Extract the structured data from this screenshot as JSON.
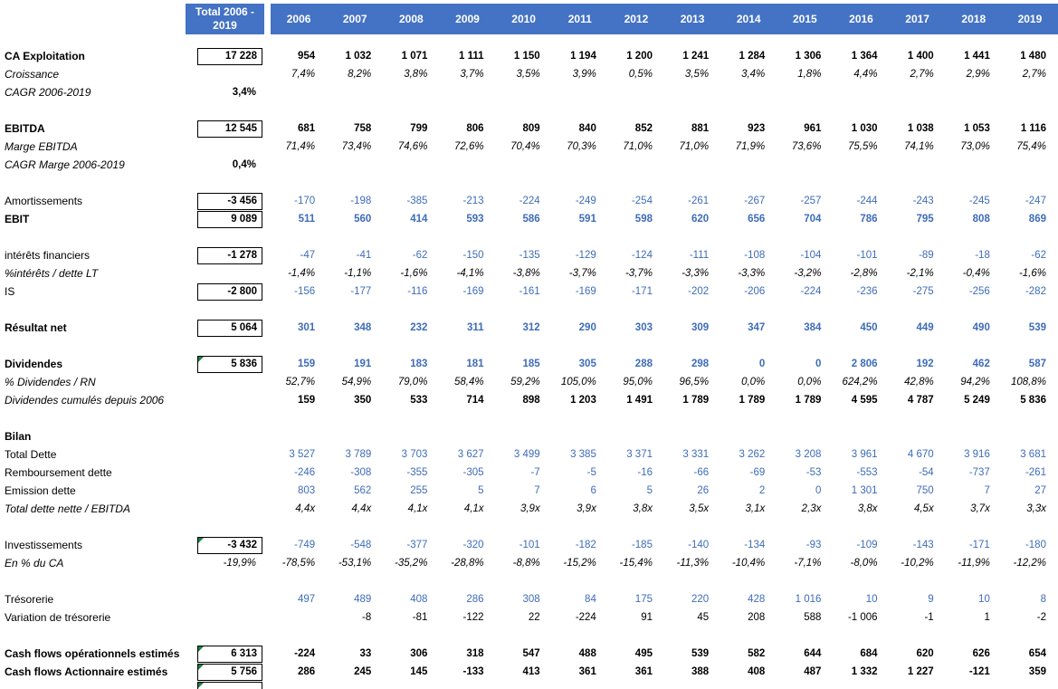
{
  "header": {
    "total_label": "Total 2006 - 2019",
    "years": [
      "2006",
      "2007",
      "2008",
      "2009",
      "2010",
      "2011",
      "2012",
      "2013",
      "2014",
      "2015",
      "2016",
      "2017",
      "2018",
      "2019"
    ]
  },
  "colors": {
    "header_bg": "#4472C4",
    "blue_text": "#3E6CB8",
    "black_text": "#000000",
    "box_border": "#000000",
    "green_flag": "#1F7A44"
  },
  "rows": [
    {
      "key": "ca_exploitation",
      "label": "CA Exploitation",
      "label_style": "bold",
      "total": "17 228",
      "total_boxed": true,
      "green_corner": false,
      "value_class": "b-black",
      "values": [
        "954",
        "1 032",
        "1 071",
        "1 111",
        "1 150",
        "1 194",
        "1 200",
        "1 241",
        "1 284",
        "1 306",
        "1 364",
        "1 400",
        "1 441",
        "1 480"
      ]
    },
    {
      "key": "croissance",
      "label": "Croissance",
      "label_style": "italic",
      "total": null,
      "value_class": "i-black",
      "values": [
        "7,4%",
        "8,2%",
        "3,8%",
        "3,7%",
        "3,5%",
        "3,9%",
        "0,5%",
        "3,5%",
        "3,4%",
        "1,8%",
        "4,4%",
        "2,7%",
        "2,9%",
        "2,7%"
      ]
    },
    {
      "key": "cagr_ca",
      "label": "CAGR 2006-2019",
      "label_style": "italic",
      "total": "3,4%",
      "total_boxed": false,
      "total_style": "boldtot",
      "value_class": "black",
      "values": [
        "",
        "",
        "",
        "",
        "",
        "",
        "",
        "",
        "",
        "",
        "",
        "",
        "",
        ""
      ]
    },
    {
      "type": "spacer"
    },
    {
      "key": "ebitda",
      "label": "EBITDA",
      "label_style": "bold",
      "total": "12 545",
      "total_boxed": true,
      "green_corner": false,
      "value_class": "b-black",
      "values": [
        "681",
        "758",
        "799",
        "806",
        "809",
        "840",
        "852",
        "881",
        "923",
        "961",
        "1 030",
        "1 038",
        "1 053",
        "1 116"
      ]
    },
    {
      "key": "marge_ebitda",
      "label": "Marge EBITDA",
      "label_style": "italic",
      "total": null,
      "value_class": "i-black",
      "values": [
        "71,4%",
        "73,4%",
        "74,6%",
        "72,6%",
        "70,4%",
        "70,3%",
        "71,0%",
        "71,0%",
        "71,9%",
        "73,6%",
        "75,5%",
        "74,1%",
        "73,0%",
        "75,4%"
      ]
    },
    {
      "key": "cagr_marge",
      "label": "CAGR Marge 2006-2019",
      "label_style": "italic",
      "total": "0,4%",
      "total_boxed": false,
      "total_style": "boldtot",
      "value_class": "black",
      "values": [
        "",
        "",
        "",
        "",
        "",
        "",
        "",
        "",
        "",
        "",
        "",
        "",
        "",
        ""
      ]
    },
    {
      "type": "spacer"
    },
    {
      "key": "amortissements",
      "label": "Amortissements",
      "label_style": "normal",
      "total": "-3 456",
      "total_boxed": true,
      "green_corner": false,
      "value_class": "blue",
      "values": [
        "-170",
        "-198",
        "-385",
        "-213",
        "-224",
        "-249",
        "-254",
        "-261",
        "-267",
        "-257",
        "-244",
        "-243",
        "-245",
        "-247"
      ]
    },
    {
      "key": "ebit",
      "label": "EBIT",
      "label_style": "bold",
      "total": "9 089",
      "total_boxed": true,
      "green_corner": false,
      "value_class": "b-blue",
      "values": [
        "511",
        "560",
        "414",
        "593",
        "586",
        "591",
        "598",
        "620",
        "656",
        "704",
        "786",
        "795",
        "808",
        "869"
      ]
    },
    {
      "type": "spacer"
    },
    {
      "key": "interets_financiers",
      "label": "intérêts financiers",
      "label_style": "normal",
      "total": "-1 278",
      "total_boxed": true,
      "green_corner": false,
      "value_class": "blue",
      "values": [
        "-47",
        "-41",
        "-62",
        "-150",
        "-135",
        "-129",
        "-124",
        "-111",
        "-108",
        "-104",
        "-101",
        "-89",
        "-18",
        "-62"
      ]
    },
    {
      "key": "pct_interets_dette",
      "label": "%intérêts / dette LT",
      "label_style": "italic",
      "total": null,
      "value_class": "i-black",
      "values": [
        "-1,4%",
        "-1,1%",
        "-1,6%",
        "-4,1%",
        "-3,8%",
        "-3,7%",
        "-3,7%",
        "-3,3%",
        "-3,3%",
        "-3,2%",
        "-2,8%",
        "-2,1%",
        "-0,4%",
        "-1,6%"
      ]
    },
    {
      "key": "is",
      "label": "IS",
      "label_style": "normal",
      "total": "-2 800",
      "total_boxed": true,
      "green_corner": false,
      "value_class": "blue",
      "values": [
        "-156",
        "-177",
        "-116",
        "-169",
        "-161",
        "-169",
        "-171",
        "-202",
        "-206",
        "-224",
        "-236",
        "-275",
        "-256",
        "-282"
      ]
    },
    {
      "type": "spacer"
    },
    {
      "key": "resultat_net",
      "label": "Résultat net",
      "label_style": "bold",
      "total": "5 064",
      "total_boxed": true,
      "green_corner": false,
      "value_class": "b-blue",
      "values": [
        "301",
        "348",
        "232",
        "311",
        "312",
        "290",
        "303",
        "309",
        "347",
        "384",
        "450",
        "449",
        "490",
        "539"
      ]
    },
    {
      "type": "spacer"
    },
    {
      "key": "dividendes",
      "label": "Dividendes",
      "label_style": "bold",
      "total": "5 836",
      "total_boxed": true,
      "green_corner": true,
      "value_class": "b-blue",
      "values": [
        "159",
        "191",
        "183",
        "181",
        "185",
        "305",
        "288",
        "298",
        "0",
        "0",
        "2 806",
        "192",
        "462",
        "587"
      ]
    },
    {
      "key": "pct_dividendes_rn",
      "label": "% Dividendes / RN",
      "label_style": "italic",
      "total": null,
      "value_class": "i-black",
      "values": [
        "52,7%",
        "54,9%",
        "79,0%",
        "58,4%",
        "59,2%",
        "105,0%",
        "95,0%",
        "96,5%",
        "0,0%",
        "0,0%",
        "624,2%",
        "42,8%",
        "94,2%",
        "108,8%"
      ]
    },
    {
      "key": "dividendes_cumules",
      "label": "Dividendes cumulés depuis 2006",
      "label_style": "italic",
      "total": null,
      "value_class": "b-black",
      "values": [
        "159",
        "350",
        "533",
        "714",
        "898",
        "1 203",
        "1 491",
        "1 789",
        "1 789",
        "1 789",
        "4 595",
        "4 787",
        "5 249",
        "5 836"
      ]
    },
    {
      "type": "spacer"
    },
    {
      "key": "bilan",
      "label": "Bilan",
      "label_style": "bold",
      "total": null,
      "value_class": "black",
      "values": [
        "",
        "",
        "",
        "",
        "",
        "",
        "",
        "",
        "",
        "",
        "",
        "",
        "",
        ""
      ]
    },
    {
      "key": "total_dette",
      "label": "Total Dette",
      "label_style": "normal",
      "total": null,
      "value_class": "blue",
      "values": [
        "3 527",
        "3 789",
        "3 703",
        "3 627",
        "3 499",
        "3 385",
        "3 371",
        "3 331",
        "3 262",
        "3 208",
        "3 961",
        "4 670",
        "3 916",
        "3 681"
      ]
    },
    {
      "key": "remboursement_dette",
      "label": "Remboursement dette",
      "label_style": "normal",
      "total": null,
      "value_class": "blue",
      "values": [
        "-246",
        "-308",
        "-355",
        "-305",
        "-7",
        "-5",
        "-16",
        "-66",
        "-69",
        "-53",
        "-553",
        "-54",
        "-737",
        "-261"
      ]
    },
    {
      "key": "emission_dette",
      "label": "Emission dette",
      "label_style": "normal",
      "total": null,
      "value_class": "blue",
      "values": [
        "803",
        "562",
        "255",
        "5",
        "7",
        "6",
        "5",
        "26",
        "2",
        "0",
        "1 301",
        "750",
        "7",
        "27"
      ]
    },
    {
      "key": "dette_nette_ebitda",
      "label": "Total dette nette / EBITDA",
      "label_style": "italic",
      "total": null,
      "value_class": "i-black",
      "values": [
        "4,4x",
        "4,4x",
        "4,1x",
        "4,1x",
        "3,9x",
        "3,9x",
        "3,8x",
        "3,5x",
        "3,1x",
        "2,3x",
        "3,8x",
        "4,5x",
        "3,7x",
        "3,3x"
      ]
    },
    {
      "type": "spacer"
    },
    {
      "key": "investissements",
      "label": "Investissements",
      "label_style": "normal",
      "total": "-3 432",
      "total_boxed": true,
      "green_corner": true,
      "value_class": "blue",
      "values": [
        "-749",
        "-548",
        "-377",
        "-320",
        "-101",
        "-182",
        "-185",
        "-140",
        "-134",
        "-93",
        "-109",
        "-143",
        "-171",
        "-180"
      ]
    },
    {
      "key": "pct_du_ca",
      "label": "En % du CA",
      "label_style": "italic",
      "total": "-19,9%",
      "total_boxed": false,
      "total_style": "italictot",
      "value_class": "i-black",
      "values": [
        "-78,5%",
        "-53,1%",
        "-35,2%",
        "-28,8%",
        "-8,8%",
        "-15,2%",
        "-15,4%",
        "-11,3%",
        "-10,4%",
        "-7,1%",
        "-8,0%",
        "-10,2%",
        "-11,9%",
        "-12,2%"
      ]
    },
    {
      "type": "spacer"
    },
    {
      "key": "tresorerie",
      "label": "Trésorerie",
      "label_style": "normal",
      "total": null,
      "value_class": "blue",
      "values": [
        "497",
        "489",
        "408",
        "286",
        "308",
        "84",
        "175",
        "220",
        "428",
        "1 016",
        "10",
        "9",
        "10",
        "8"
      ]
    },
    {
      "key": "variation_tresorerie",
      "label": "Variation de trésorerie",
      "label_style": "normal",
      "total": null,
      "value_class": "black",
      "values": [
        "",
        "-8",
        "-81",
        "-122",
        "22",
        "-224",
        "91",
        "45",
        "208",
        "588",
        "-1 006",
        "-1",
        "1",
        "-2"
      ]
    },
    {
      "type": "spacer"
    },
    {
      "key": "cash_flows_operationnels",
      "label": "Cash flows opérationnels estimés",
      "label_style": "bold",
      "total": "6 313",
      "total_boxed": true,
      "green_corner": true,
      "value_class": "b-black",
      "values": [
        "-224",
        "33",
        "306",
        "318",
        "547",
        "488",
        "495",
        "539",
        "582",
        "644",
        "684",
        "620",
        "626",
        "654"
      ]
    },
    {
      "key": "cash_flows_actionnaire",
      "label": "Cash flows Actionnaire estimés",
      "label_style": "bold",
      "total": "5 756",
      "total_boxed": true,
      "green_corner": true,
      "value_class": "b-black",
      "values": [
        "286",
        "245",
        "145",
        "-133",
        "413",
        "361",
        "361",
        "388",
        "408",
        "487",
        "1 332",
        "1 227",
        "-121",
        "359"
      ]
    },
    {
      "type": "partial",
      "key": "cutoff_row",
      "label": "",
      "total": "",
      "total_boxed": true,
      "green_corner": true,
      "value_class": "black",
      "values": [
        "",
        "",
        "",
        "",
        "",
        "",
        "",
        "",
        "",
        "",
        "",
        "",
        "",
        ""
      ]
    }
  ]
}
